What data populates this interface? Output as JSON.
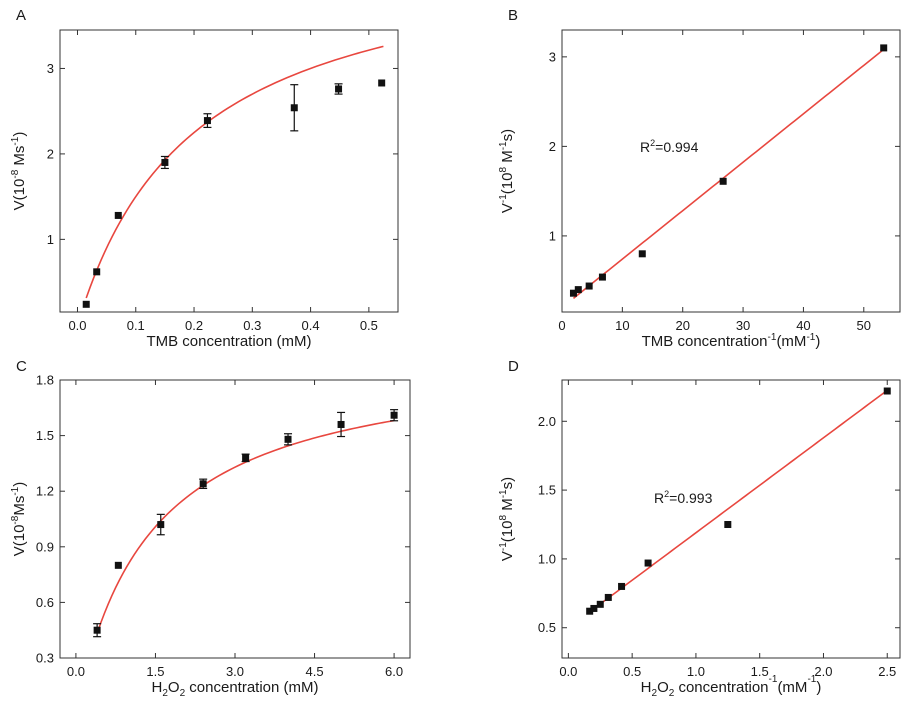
{
  "chart_data": [
    {
      "panel": "A",
      "type": "scatter",
      "xlabel": [
        "TMB concentration (mM)"
      ],
      "ylabel": [
        "V(10",
        "-8",
        " Ms",
        "-1",
        ")"
      ],
      "xlim": [
        -0.03,
        0.55
      ],
      "ylim": [
        0.15,
        3.45
      ],
      "xticks": [
        0.0,
        0.1,
        0.2,
        0.3,
        0.4,
        0.5
      ],
      "yticks": [
        1,
        2,
        3
      ],
      "xtick_labels": [
        "0.0",
        "0.1",
        "0.2",
        "0.3",
        "0.4",
        "0.5"
      ],
      "ytick_labels": [
        "1",
        "2",
        "3"
      ],
      "points": [
        {
          "x": 0.015,
          "y": 0.24,
          "err": 0
        },
        {
          "x": 0.033,
          "y": 0.62,
          "err": 0
        },
        {
          "x": 0.07,
          "y": 1.28,
          "err": 0
        },
        {
          "x": 0.15,
          "y": 1.9,
          "err": 0.07
        },
        {
          "x": 0.223,
          "y": 2.39,
          "err": 0.08
        },
        {
          "x": 0.372,
          "y": 2.54,
          "err": 0.27
        },
        {
          "x": 0.448,
          "y": 2.76,
          "err": 0.06
        },
        {
          "x": 0.522,
          "y": 2.83,
          "err": 0
        }
      ],
      "fit": {
        "kind": "michaelis-menten",
        "vmax": 4.5,
        "km": 0.2,
        "x_start": 0.015,
        "x_end": 0.525
      },
      "annotation": []
    },
    {
      "panel": "B",
      "type": "scatter",
      "xlabel": [
        "TMB concentration",
        "-1",
        "(mM",
        "-1",
        ")"
      ],
      "ylabel": [
        "V",
        "-1",
        "(10",
        "8",
        " M",
        "-1",
        "s)"
      ],
      "xlim": [
        0,
        56
      ],
      "ylim": [
        0.15,
        3.3
      ],
      "xticks": [
        0,
        10,
        20,
        30,
        40,
        50
      ],
      "yticks": [
        1,
        2,
        3
      ],
      "xtick_labels": [
        "0",
        "10",
        "20",
        "30",
        "40",
        "50"
      ],
      "ytick_labels": [
        "1",
        "2",
        "3"
      ],
      "points": [
        {
          "x": 1.9,
          "y": 0.36,
          "err": 0
        },
        {
          "x": 2.7,
          "y": 0.4,
          "err": 0
        },
        {
          "x": 4.5,
          "y": 0.44,
          "err": 0
        },
        {
          "x": 6.7,
          "y": 0.54,
          "err": 0
        },
        {
          "x": 13.3,
          "y": 0.8,
          "err": 0
        },
        {
          "x": 26.7,
          "y": 1.61,
          "err": 0
        },
        {
          "x": 53.3,
          "y": 3.1,
          "err": 0
        }
      ],
      "fit": {
        "kind": "linear",
        "slope": 0.0541,
        "intercept": 0.2,
        "x_start": 1.9,
        "x_end": 53.3
      },
      "annotation": [
        "R",
        "2",
        "=0.994"
      ]
    },
    {
      "panel": "C",
      "type": "scatter",
      "xlabel": [
        "H",
        "2",
        "O",
        "2",
        " concentration (mM)"
      ],
      "ylabel": [
        "V(10",
        "-8",
        "Ms",
        "-1",
        ")"
      ],
      "xlim": [
        -0.3,
        6.3
      ],
      "ylim": [
        0.3,
        1.8
      ],
      "xticks": [
        0.0,
        1.5,
        3.0,
        4.5,
        6.0
      ],
      "yticks": [
        0.3,
        0.6,
        0.9,
        1.2,
        1.5,
        1.8
      ],
      "xtick_labels": [
        "0.0",
        "1.5",
        "3.0",
        "4.5",
        "6.0"
      ],
      "ytick_labels": [
        "0.3",
        "0.6",
        "0.9",
        "1.2",
        "1.5",
        "1.8"
      ],
      "points": [
        {
          "x": 0.4,
          "y": 0.45,
          "err": 0.035
        },
        {
          "x": 0.8,
          "y": 0.8,
          "err": 0
        },
        {
          "x": 1.6,
          "y": 1.02,
          "err": 0.055
        },
        {
          "x": 2.4,
          "y": 1.24,
          "err": 0.025
        },
        {
          "x": 3.2,
          "y": 1.38,
          "err": 0.02
        },
        {
          "x": 4.0,
          "y": 1.48,
          "err": 0.03
        },
        {
          "x": 5.0,
          "y": 1.56,
          "err": 0.065
        },
        {
          "x": 6.0,
          "y": 1.61,
          "err": 0.03
        }
      ],
      "fit": {
        "kind": "michaelis-menten",
        "vmax": 1.95,
        "km": 1.4,
        "x_start": 0.4,
        "x_end": 6.0
      },
      "annotation": []
    },
    {
      "panel": "D",
      "type": "scatter",
      "xlabel": [
        "H",
        "2",
        "O",
        "2",
        " concentration",
        "-1",
        "(mM",
        "-1",
        ")"
      ],
      "ylabel": [
        "V",
        "-1",
        "(10",
        "8",
        " M",
        "-1",
        "s)"
      ],
      "xlim": [
        -0.05,
        2.6
      ],
      "ylim": [
        0.28,
        2.3
      ],
      "xticks": [
        0.0,
        0.5,
        1.0,
        1.5,
        2.0,
        2.5
      ],
      "yticks": [
        0.5,
        1.0,
        1.5,
        2.0
      ],
      "xtick_labels": [
        "0.0",
        "0.5",
        "1.0",
        "1.5",
        "2.0",
        "2.5"
      ],
      "ytick_labels": [
        "0.5",
        "1.0",
        "1.5",
        "2.0"
      ],
      "points": [
        {
          "x": 0.167,
          "y": 0.62,
          "err": 0
        },
        {
          "x": 0.2,
          "y": 0.64,
          "err": 0
        },
        {
          "x": 0.25,
          "y": 0.67,
          "err": 0
        },
        {
          "x": 0.313,
          "y": 0.72,
          "err": 0
        },
        {
          "x": 0.417,
          "y": 0.8,
          "err": 0
        },
        {
          "x": 0.625,
          "y": 0.97,
          "err": 0
        },
        {
          "x": 1.25,
          "y": 1.25,
          "err": 0
        },
        {
          "x": 2.5,
          "y": 2.22,
          "err": 0
        }
      ],
      "fit": {
        "kind": "linear",
        "slope": 0.69,
        "intercept": 0.5,
        "x_start": 0.167,
        "x_end": 2.5
      },
      "annotation": [
        "R",
        "2",
        "=0.993"
      ]
    }
  ],
  "colors": {
    "fit_line": "#e8473f",
    "marker": "#111111",
    "axis": "#333333"
  }
}
